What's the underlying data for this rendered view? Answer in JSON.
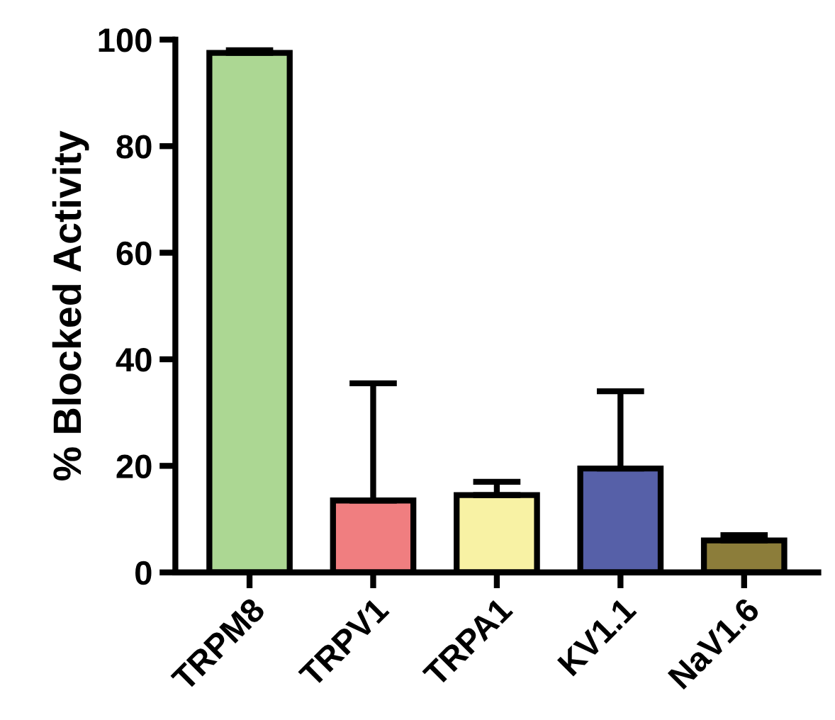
{
  "chart_data": {
    "type": "bar",
    "ylabel": "% Blocked Activity",
    "categories": [
      "TRPM8",
      "TRPV1",
      "TRPA1",
      "KV1.1",
      "NaV1.6"
    ],
    "values": [
      97.5,
      13.5,
      14.5,
      19.5,
      6
    ],
    "colors": [
      "#acd793",
      "#f07e80",
      "#f8f2a4",
      "#5660a8",
      "#8c7d3a"
    ],
    "errors": [
      [
        97.5,
        98
      ],
      [
        13.5,
        35.5
      ],
      [
        14.5,
        17
      ],
      [
        19.5,
        34
      ],
      [
        6,
        7
      ]
    ],
    "ylim": [
      0,
      100
    ],
    "yticks": [
      0,
      20,
      40,
      60,
      80,
      100
    ],
    "grid": false,
    "legend": false
  }
}
